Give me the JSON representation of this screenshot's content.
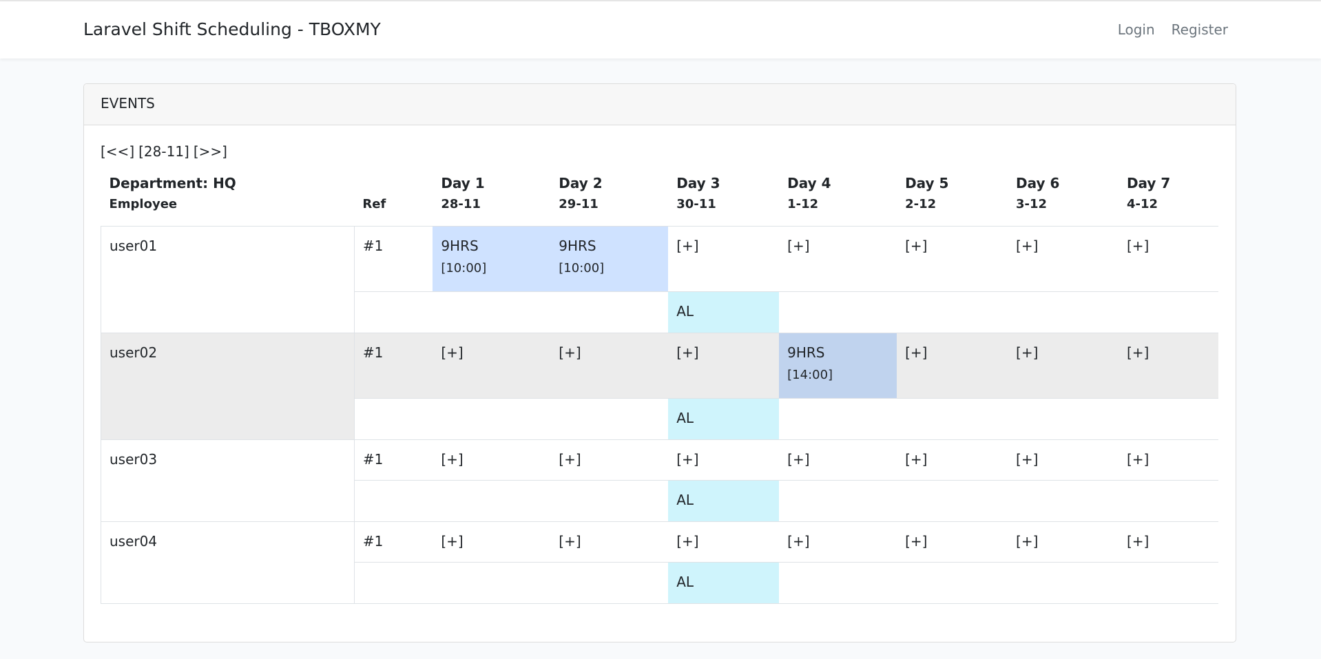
{
  "navbar": {
    "brand": "Laravel Shift Scheduling - TBOXMY",
    "login": "Login",
    "register": "Register"
  },
  "card": {
    "title": "EVENTS",
    "pager": {
      "prev": "[<<]",
      "current": "[28-11]",
      "next": "[>>]"
    }
  },
  "table": {
    "department": "Department: HQ",
    "employee_header": "Employee",
    "ref_header": "Ref",
    "days": [
      {
        "label": "Day 1",
        "date": "28-11"
      },
      {
        "label": "Day 2",
        "date": "29-11"
      },
      {
        "label": "Day 3",
        "date": "30-11"
      },
      {
        "label": "Day 4",
        "date": "1-12"
      },
      {
        "label": "Day 5",
        "date": "2-12"
      },
      {
        "label": "Day 6",
        "date": "3-12"
      },
      {
        "label": "Day 7",
        "date": "4-12"
      }
    ],
    "add_label": "[+]",
    "leave_label": "AL",
    "rows": [
      {
        "employee": "user01",
        "ref": "#1",
        "shifts": [
          {
            "hours": "9HRS",
            "time": "[10:00]"
          },
          {
            "hours": "9HRS",
            "time": "[10:00]"
          }
        ]
      },
      {
        "employee": "user02",
        "ref": "#1",
        "shifts": [
          {
            "hours": "9HRS",
            "time": "[14:00]"
          }
        ]
      },
      {
        "employee": "user03",
        "ref": "#1"
      },
      {
        "employee": "user04",
        "ref": "#1"
      }
    ]
  },
  "colors": {
    "shift": "#cfe2ff",
    "shift_alt": "#c0d3ee",
    "leave": "#cff4fc",
    "row_highlight": "#ececec"
  }
}
